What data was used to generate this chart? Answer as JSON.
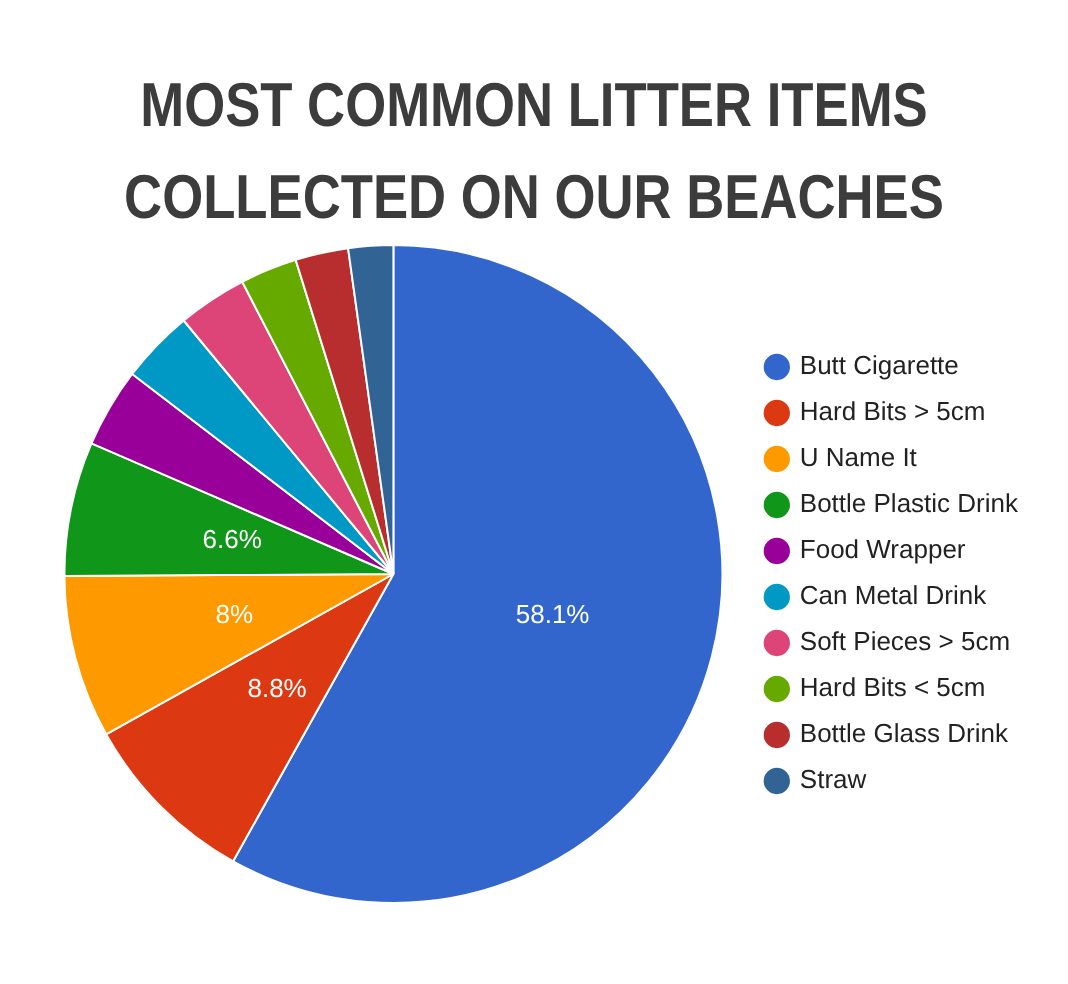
{
  "chart_data": {
    "type": "pie",
    "title": "MOST COMMON LITTER ITEMS COLLECTED ON OUR BEACHES",
    "categories": [
      "Butt Cigarette",
      "Hard Bits > 5cm",
      "U Name It",
      "Bottle Plastic Drink",
      "Food Wrapper",
      "Can Metal Drink",
      "Soft Pieces > 5cm",
      "Hard Bits < 5cm",
      "Bottle Glass Drink",
      "Straw"
    ],
    "values": [
      58.1,
      8.8,
      8,
      6.6,
      3.9,
      3.6,
      3.4,
      2.8,
      2.6,
      2.2
    ],
    "value_labels": [
      "58.1%",
      "8.8%",
      "8%",
      "6.6%",
      null,
      null,
      null,
      null,
      null,
      null
    ],
    "colors": [
      "#3366cc",
      "#dc3912",
      "#ff9900",
      "#109618",
      "#990099",
      "#0099c6",
      "#dd4477",
      "#66aa00",
      "#b82e2e",
      "#316395"
    ],
    "legend": "right"
  }
}
